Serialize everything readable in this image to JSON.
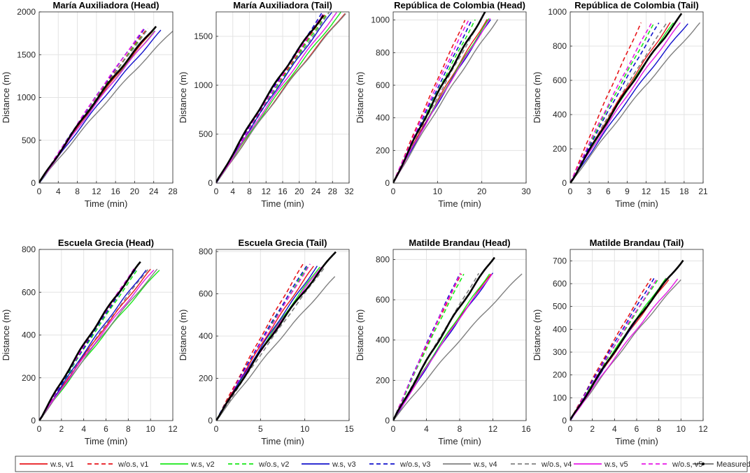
{
  "colors": {
    "v1": "#e8161b",
    "v2": "#18e818",
    "v3": "#1212cc",
    "v4": "#808080",
    "v5": "#e619e6",
    "measured": "#000000",
    "grid": "#e3e3e3",
    "axis": "#262626"
  },
  "legend": {
    "entries": [
      {
        "label": "w.s, v1",
        "series": "v1",
        "dashed": false
      },
      {
        "label": "w/o.s, v1",
        "series": "v1",
        "dashed": true
      },
      {
        "label": "w.s, v2",
        "series": "v2",
        "dashed": false
      },
      {
        "label": "w/o.s, v2",
        "series": "v2",
        "dashed": true
      },
      {
        "label": "w.s, v3",
        "series": "v3",
        "dashed": false
      },
      {
        "label": "w/o.s, v3",
        "series": "v3",
        "dashed": true
      },
      {
        "label": "w.s, v4",
        "series": "v4",
        "dashed": false
      },
      {
        "label": "w/o.s, v4",
        "series": "v4",
        "dashed": true
      },
      {
        "label": "w.s, v5",
        "series": "v5",
        "dashed": false
      },
      {
        "label": "w/o.s, v5",
        "series": "v5",
        "dashed": true
      },
      {
        "label": "Measured",
        "series": "measured",
        "dashed": false,
        "marker": true
      }
    ]
  },
  "chart_data": [
    {
      "type": "line",
      "title": "María Auxiliadora (Head)",
      "xlabel": "Time (min)",
      "ylabel": "Distance (m)",
      "xlim": [
        0,
        28
      ],
      "ylim": [
        0,
        2000
      ],
      "xticks": [
        0,
        4,
        8,
        12,
        16,
        20,
        24,
        28
      ],
      "yticks": [
        0,
        500,
        1000,
        1500,
        2000
      ],
      "grid": true,
      "measured_end": [
        24.5,
        1840
      ],
      "ws_end": {
        "v1": [
          23.8,
          1780
        ],
        "v2": [
          24.2,
          1780
        ],
        "v3": [
          25.5,
          1780
        ],
        "v4": [
          28.0,
          1780
        ],
        "v5": [
          24.3,
          1780
        ]
      },
      "wos_end": {
        "v1": [
          22.5,
          1800
        ],
        "v2": [
          22.7,
          1800
        ],
        "v3": [
          22.0,
          1800
        ],
        "v4": [
          22.8,
          1800
        ],
        "v5": [
          21.9,
          1800
        ]
      }
    },
    {
      "type": "line",
      "title": "María Auxiliadora (Tail)",
      "xlabel": "Time (min)",
      "ylabel": "",
      "xlim": [
        0,
        32
      ],
      "ylim": [
        0,
        1750
      ],
      "xticks": [
        0,
        4,
        8,
        12,
        16,
        20,
        24,
        28,
        32
      ],
      "yticks": [
        0,
        500,
        1000,
        1500
      ],
      "grid": true,
      "measured_end": [
        25.8,
        1720
      ],
      "ws_end": {
        "v1": [
          31.0,
          1740
        ],
        "v2": [
          30.0,
          1740
        ],
        "v3": [
          27.8,
          1740
        ],
        "v4": [
          31.2,
          1740
        ],
        "v5": [
          29.0,
          1740
        ]
      },
      "wos_end": {
        "v1": [
          26.4,
          1740
        ],
        "v2": [
          26.8,
          1740
        ],
        "v3": [
          25.5,
          1740
        ],
        "v4": [
          27.2,
          1740
        ],
        "v5": [
          26.0,
          1740
        ]
      }
    },
    {
      "type": "line",
      "title": "República de Colombia (Head)",
      "xlabel": "Time (min)",
      "ylabel": "",
      "xlim": [
        0,
        30
      ],
      "ylim": [
        0,
        1050
      ],
      "xticks": [
        0,
        10,
        20,
        30
      ],
      "yticks": [
        0,
        200,
        400,
        600,
        800,
        1000
      ],
      "grid": true,
      "measured_end": [
        20.8,
        1050
      ],
      "ws_end": {
        "v1": [
          21.2,
          1005
        ],
        "v2": [
          21.6,
          1005
        ],
        "v3": [
          22.0,
          1005
        ],
        "v4": [
          23.6,
          1005
        ],
        "v5": [
          21.9,
          1005
        ]
      },
      "wos_end": {
        "v1": [
          16.2,
          1000
        ],
        "v2": [
          18.5,
          1000
        ],
        "v3": [
          17.8,
          1000
        ],
        "v4": [
          19.8,
          1000
        ],
        "v5": [
          17.0,
          1000
        ]
      }
    },
    {
      "type": "line",
      "title": "República de Colombia (Tail)",
      "xlabel": "Time (min)",
      "ylabel": "",
      "xlim": [
        0,
        21
      ],
      "ylim": [
        0,
        1000
      ],
      "xticks": [
        0,
        3,
        6,
        9,
        12,
        15,
        18,
        21
      ],
      "yticks": [
        0,
        200,
        400,
        600,
        800,
        1000
      ],
      "grid": true,
      "measured_end": [
        17.6,
        985
      ],
      "ws_end": {
        "v1": [
          15.8,
          935
        ],
        "v2": [
          16.3,
          935
        ],
        "v3": [
          18.6,
          935
        ],
        "v4": [
          20.5,
          935
        ],
        "v5": [
          17.4,
          935
        ]
      },
      "wos_end": {
        "v1": [
          11.2,
          935
        ],
        "v2": [
          13.3,
          935
        ],
        "v3": [
          14.0,
          935
        ],
        "v4": [
          15.2,
          935
        ],
        "v5": [
          12.8,
          935
        ]
      }
    },
    {
      "type": "line",
      "title": "Escuela Grecia (Head)",
      "xlabel": "Time (min)",
      "ylabel": "Distance (m)",
      "xlim": [
        0,
        12
      ],
      "ylim": [
        0,
        800
      ],
      "xticks": [
        0,
        2,
        4,
        6,
        8,
        10,
        12
      ],
      "yticks": [
        0,
        200,
        400,
        600,
        800
      ],
      "grid": true,
      "measured_end": [
        9.1,
        740
      ],
      "ws_end": {
        "v1": [
          10.0,
          705
        ],
        "v2": [
          10.8,
          705
        ],
        "v3": [
          9.6,
          705
        ],
        "v4": [
          10.6,
          705
        ],
        "v5": [
          10.3,
          705
        ]
      },
      "wos_end": {
        "v1": [
          8.6,
          710
        ],
        "v2": [
          8.9,
          710
        ],
        "v3": [
          8.7,
          710
        ],
        "v4": [
          9.8,
          710
        ],
        "v5": [
          8.5,
          710
        ]
      }
    },
    {
      "type": "line",
      "title": "Escuela Grecia (Tail)",
      "xlabel": "Time (min)",
      "ylabel": "",
      "xlim": [
        0,
        15
      ],
      "ylim": [
        0,
        810
      ],
      "xticks": [
        0,
        5,
        10,
        15
      ],
      "yticks": [
        0,
        200,
        400,
        600,
        800
      ],
      "grid": true,
      "measured_end": [
        13.5,
        800
      ],
      "ws_end": {
        "v1": [
          11.0,
          730
        ],
        "v2": [
          11.7,
          730
        ],
        "v3": [
          11.4,
          730
        ],
        "v4": [
          13.4,
          680
        ],
        "v5": [
          11.9,
          730
        ]
      },
      "wos_end": {
        "v1": [
          9.8,
          740
        ],
        "v2": [
          10.5,
          740
        ],
        "v3": [
          10.3,
          740
        ],
        "v4": [
          12.3,
          730
        ],
        "v5": [
          10.6,
          740
        ]
      }
    },
    {
      "type": "line",
      "title": "Matilde Brandau (Head)",
      "xlabel": "Time (min)",
      "ylabel": "",
      "xlim": [
        0,
        16
      ],
      "ylim": [
        0,
        850
      ],
      "xticks": [
        0,
        4,
        8,
        12,
        16
      ],
      "yticks": [
        0,
        200,
        400,
        600,
        800
      ],
      "grid": true,
      "measured_end": [
        12.2,
        815
      ],
      "ws_end": {
        "v1": [
          11.8,
          730
        ],
        "v2": [
          11.6,
          730
        ],
        "v3": [
          12.0,
          730
        ],
        "v4": [
          15.5,
          730
        ],
        "v5": [
          11.9,
          730
        ]
      },
      "wos_end": {
        "v1": [
          8.2,
          730
        ],
        "v2": [
          8.5,
          730
        ],
        "v3": [
          8.0,
          730
        ],
        "v4": [
          10.3,
          730
        ],
        "v5": [
          8.1,
          730
        ]
      }
    },
    {
      "type": "line",
      "title": "Matilde Brandau (Tail)",
      "xlabel": "Time (min)",
      "ylabel": "Distance (m)",
      "xlim": [
        0,
        12
      ],
      "ylim": [
        0,
        750
      ],
      "xticks": [
        0,
        2,
        4,
        6,
        8,
        10,
        12
      ],
      "yticks": [
        0,
        100,
        200,
        300,
        400,
        500,
        600,
        700
      ],
      "grid": true,
      "measured_end": [
        10.2,
        705
      ],
      "ws_end": {
        "v1": [
          8.9,
          620
        ],
        "v2": [
          8.6,
          620
        ],
        "v3": [
          8.8,
          620
        ],
        "v4": [
          10.0,
          620
        ],
        "v5": [
          9.7,
          620
        ]
      },
      "wos_end": {
        "v1": [
          7.3,
          625
        ],
        "v2": [
          8.0,
          625
        ],
        "v3": [
          7.6,
          625
        ],
        "v4": [
          8.7,
          625
        ],
        "v5": [
          7.9,
          625
        ]
      }
    }
  ]
}
